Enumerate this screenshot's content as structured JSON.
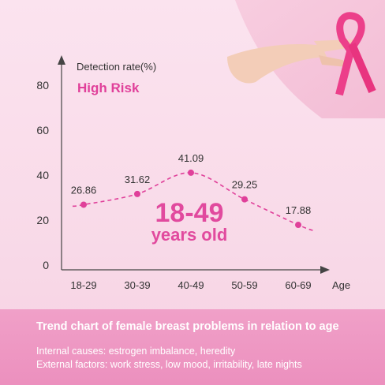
{
  "chart_data": {
    "type": "line",
    "categories": [
      "18-29",
      "30-39",
      "40-49",
      "50-59",
      "60-69"
    ],
    "values": [
      26.86,
      31.62,
      41.09,
      29.25,
      17.88
    ],
    "ylabel": "Detection rate(%)",
    "xlabel": "Age",
    "yticks": [
      0,
      20,
      40,
      60,
      80
    ],
    "ylim": [
      0,
      80
    ],
    "grid": false,
    "annotation": "High Risk",
    "highlight": {
      "range": "18-49",
      "unit": "years old"
    },
    "colors": {
      "line": "#e0409a",
      "marker": "#e0409a",
      "accent": "#e14a9e"
    }
  },
  "footer": {
    "title": "Trend chart of female breast problems in relation to age",
    "line1": "Internal causes: estrogen imbalance, heredity",
    "line2": "External factors: work stress, low mood, irritability, late nights"
  },
  "hero": {
    "icon": "pink-ribbon-icon"
  }
}
